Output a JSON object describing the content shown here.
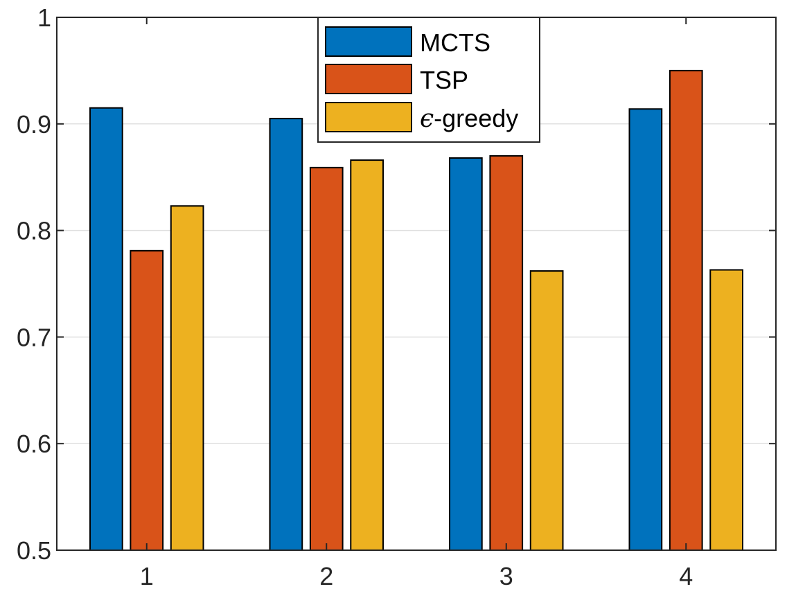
{
  "chart_data": {
    "type": "bar",
    "categories": [
      "1",
      "2",
      "3",
      "4"
    ],
    "series": [
      {
        "name": "MCTS",
        "color": "#0072BD",
        "values": [
          0.915,
          0.905,
          0.868,
          0.914
        ]
      },
      {
        "name": "TSP",
        "color": "#D95319",
        "values": [
          0.781,
          0.859,
          0.87,
          0.95
        ]
      },
      {
        "name": "ε-greedy",
        "color": "#EDB120",
        "values": [
          0.823,
          0.866,
          0.762,
          0.763
        ]
      }
    ],
    "title": "",
    "xlabel": "",
    "ylabel": "",
    "ylim": [
      0.5,
      1
    ],
    "yticks": [
      "0.5",
      "0.6",
      "0.7",
      "0.8",
      "0.9",
      "1"
    ],
    "grid": "horizontal",
    "legend_position": "top-center"
  },
  "legend": {
    "items": [
      {
        "prefix": "",
        "label": "MCTS"
      },
      {
        "prefix": "",
        "label": "TSP"
      },
      {
        "prefix": "ϵ",
        "label": "-greedy"
      }
    ]
  }
}
